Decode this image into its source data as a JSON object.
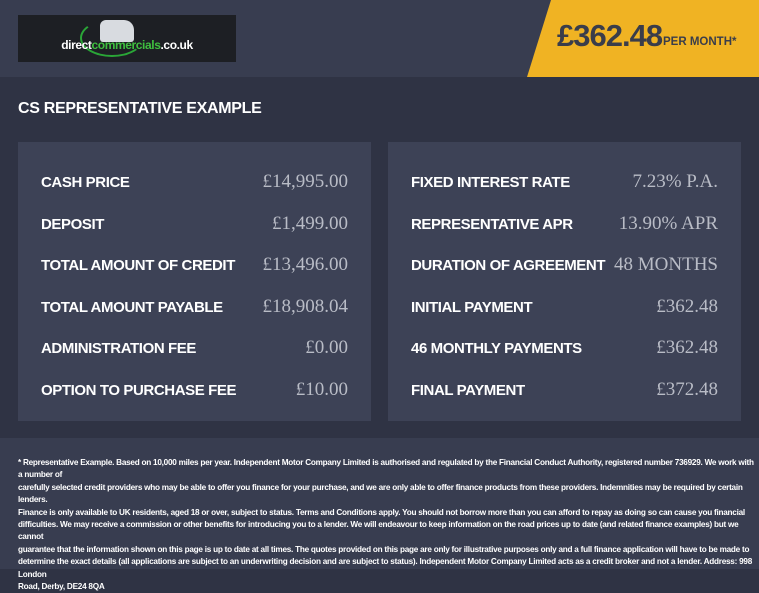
{
  "header": {
    "logo": {
      "text_main": "direct",
      "text_accent": "commercials",
      "text_tld": ".co.uk"
    },
    "price": "£362.48",
    "price_suffix": "PER MONTH*",
    "accent_color": "#f0b323"
  },
  "section_title": "CS REPRESENTATIVE EXAMPLE",
  "left_panel": [
    {
      "label": "CASH PRICE",
      "value": "£14,995.00"
    },
    {
      "label": "DEPOSIT",
      "value": "£1,499.00"
    },
    {
      "label": "TOTAL AMOUNT OF CREDIT",
      "value": "£13,496.00"
    },
    {
      "label": "TOTAL AMOUNT PAYABLE",
      "value": "£18,908.04"
    },
    {
      "label": "ADMINISTRATION FEE",
      "value": "£0.00"
    },
    {
      "label": "OPTION TO PURCHASE FEE",
      "value": "£10.00"
    }
  ],
  "right_panel": [
    {
      "label": "FIXED INTEREST RATE",
      "value": "7.23% P.A."
    },
    {
      "label": "REPRESENTATIVE APR",
      "value": "13.90% APR"
    },
    {
      "label": "DURATION OF AGREEMENT",
      "value": "48 MONTHS"
    },
    {
      "label": "INITIAL PAYMENT",
      "value": "£362.48"
    },
    {
      "label": "46 MONTHLY PAYMENTS",
      "value": "£362.48"
    },
    {
      "label": "FINAL PAYMENT",
      "value": "£372.48"
    }
  ],
  "footer": {
    "lines": [
      "* Representative Example. Based on 10,000 miles per year. Independent Motor Company Limited is authorised and regulated by the Financial Conduct Authority, registered number 736929. We work with a number of",
      "carefully selected credit providers who may be able to offer you finance for your purchase, and we are only able to offer finance products from these providers. Indemnities may be required by certain lenders.",
      "Finance is only available to UK residents, aged 18 or over, subject to status. Terms and Conditions apply. You should not borrow more than you can afford to repay as doing so can cause you financial",
      "difficulties. We may receive a commission or other benefits for introducing you to a lender. We will endeavour to keep information on the road prices up to date (and related finance examples) but we cannot",
      "guarantee that the information shown on this page is up to date at all times. The quotes provided on this page are only for illustrative purposes only and a full finance application will have to be made to",
      "determine the exact details (all applications are subject to an underwriting decision and are subject to status). Independent Motor Company Limited acts as a credit broker and not a lender. Address: 998 London",
      "Road, Derby, DE24 8QA"
    ]
  }
}
